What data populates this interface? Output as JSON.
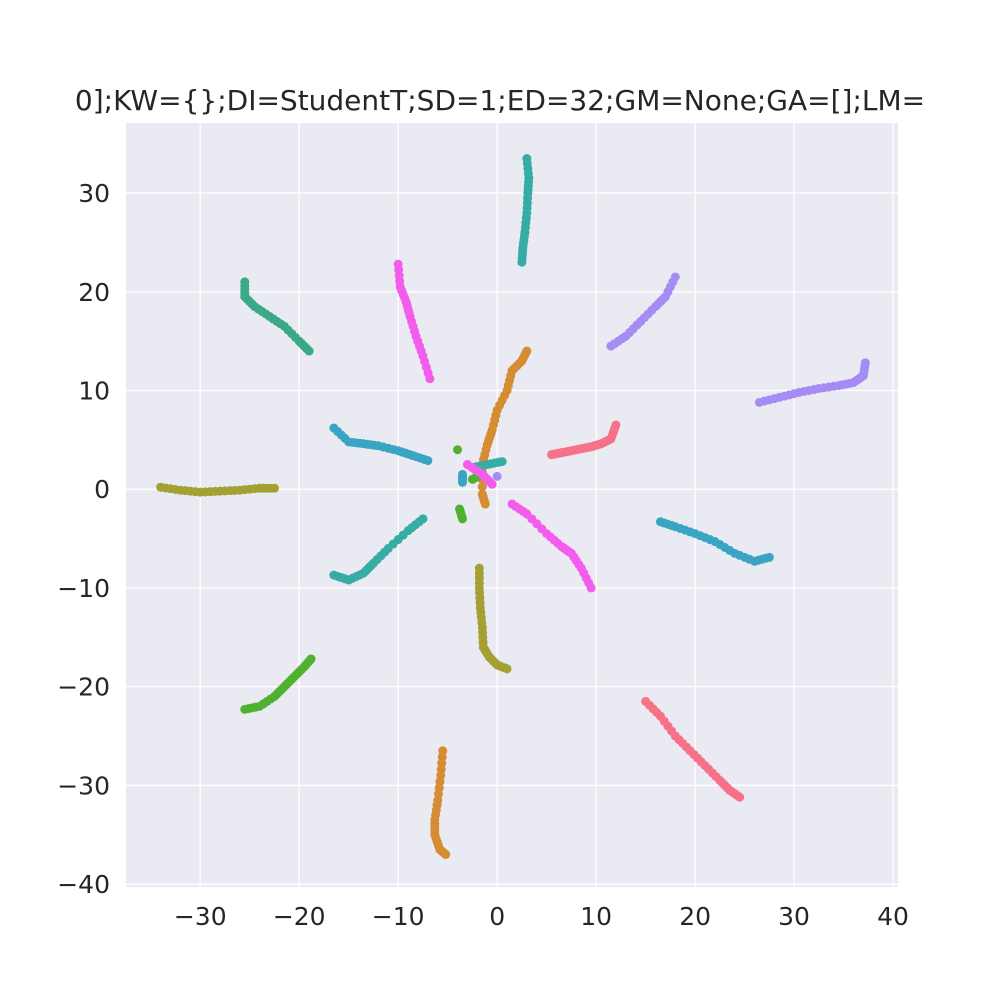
{
  "chart_data": {
    "type": "scatter",
    "title": "0];KW={};DI=StudentT;SD=1;ED=32;GM=None;GA=[];LM=",
    "xlabel": "",
    "ylabel": "",
    "xlim": [
      -37.5,
      40.5
    ],
    "ylim": [
      -40.3,
      37.1
    ],
    "xticks": [
      -30,
      -20,
      -10,
      0,
      10,
      20,
      30,
      40
    ],
    "yticks": [
      -40,
      -30,
      -20,
      -10,
      0,
      10,
      20,
      30
    ],
    "xtick_labels": [
      "−30",
      "−20",
      "−10",
      "0",
      "10",
      "20",
      "30",
      "40"
    ],
    "ytick_labels": [
      "−40",
      "−30",
      "−20",
      "−10",
      "0",
      "10",
      "20",
      "30"
    ],
    "grid": true,
    "background": "#eaeaf2",
    "grid_color": "#ffffff",
    "series": [
      {
        "color": "#f77189",
        "points": [
          [
            5.5,
            3.5
          ],
          [
            6.5,
            3.7
          ],
          [
            7.5,
            3.9
          ],
          [
            8.5,
            4.1
          ],
          [
            9.5,
            4.3
          ],
          [
            10.5,
            4.6
          ],
          [
            11.5,
            5.1
          ],
          [
            12,
            6.5
          ],
          [
            15,
            -21.5
          ],
          [
            16.5,
            -23
          ],
          [
            18,
            -25
          ],
          [
            19.5,
            -26.5
          ],
          [
            21,
            -28
          ],
          [
            22.5,
            -29.5
          ],
          [
            23.5,
            -30.5
          ],
          [
            24.5,
            -31.2
          ]
        ]
      },
      {
        "color": "#d58c32",
        "points": [
          [
            -5.5,
            -26.5
          ],
          [
            -5.7,
            -29
          ],
          [
            -6,
            -31.5
          ],
          [
            -6.3,
            -33.5
          ],
          [
            -6.3,
            -35
          ],
          [
            -5.8,
            -36.5
          ],
          [
            -5.2,
            -37
          ],
          [
            3,
            14
          ],
          [
            2.5,
            13
          ],
          [
            1.5,
            12
          ],
          [
            1,
            10
          ],
          [
            0,
            8
          ],
          [
            -0.5,
            6
          ],
          [
            -1,
            4.5
          ],
          [
            -1.5,
            2.5
          ],
          [
            -1.5,
            -0.5
          ],
          [
            -1.2,
            -1.5
          ]
        ]
      },
      {
        "color": "#a4a031",
        "points": [
          [
            -34,
            0.2
          ],
          [
            -32,
            -0.1
          ],
          [
            -30,
            -0.3
          ],
          [
            -28,
            -0.2
          ],
          [
            -26,
            -0.1
          ],
          [
            -24,
            0.1
          ],
          [
            -22.5,
            0.1
          ],
          [
            -1.8,
            -8
          ],
          [
            -1.8,
            -10
          ],
          [
            -1.7,
            -12
          ],
          [
            -1.5,
            -14
          ],
          [
            -1.4,
            -16
          ],
          [
            -0.8,
            -17
          ],
          [
            0,
            -17.8
          ],
          [
            1,
            -18.2
          ]
        ]
      },
      {
        "color": "#50b131",
        "points": [
          [
            -4,
            4
          ],
          [
            -3.8,
            -2
          ],
          [
            -3.5,
            -3
          ],
          [
            -25.5,
            -22.3
          ],
          [
            -24,
            -22
          ],
          [
            -22.5,
            -21
          ],
          [
            -21.5,
            -20
          ],
          [
            -20.5,
            -19
          ],
          [
            -19.5,
            -18
          ],
          [
            -18.8,
            -17.2
          ],
          [
            -1.5,
            1.5
          ],
          [
            -2.5,
            1
          ]
        ]
      },
      {
        "color": "#3ba986",
        "points": [
          [
            -25.5,
            21
          ],
          [
            -25.5,
            19.5
          ],
          [
            -24.5,
            18.5
          ],
          [
            -23,
            17.5
          ],
          [
            -21.5,
            16.5
          ],
          [
            -20,
            15
          ],
          [
            -19,
            14
          ]
        ]
      },
      {
        "color": "#36ada4",
        "points": [
          [
            3,
            33.5
          ],
          [
            3.2,
            31.5
          ],
          [
            3.1,
            30
          ],
          [
            3,
            28
          ],
          [
            2.8,
            26
          ],
          [
            2.6,
            24.5
          ],
          [
            2.5,
            23
          ],
          [
            -16.5,
            -8.7
          ],
          [
            -15,
            -9.2
          ],
          [
            -13.5,
            -8.5
          ],
          [
            -12.5,
            -7.5
          ],
          [
            -11,
            -6
          ],
          [
            -9,
            -4.2
          ],
          [
            -7.5,
            -3
          ],
          [
            -2.5,
            2.2
          ],
          [
            -1,
            2.5
          ],
          [
            0.5,
            2.8
          ]
        ]
      },
      {
        "color": "#3aa5c3",
        "points": [
          [
            -16.5,
            6.2
          ],
          [
            -15,
            4.8
          ],
          [
            -13.5,
            4.6
          ],
          [
            -12,
            4.4
          ],
          [
            -10,
            3.9
          ],
          [
            -8.5,
            3.4
          ],
          [
            -7,
            2.9
          ],
          [
            16.5,
            -3.3
          ],
          [
            18,
            -3.8
          ],
          [
            20,
            -4.5
          ],
          [
            22,
            -5.3
          ],
          [
            24,
            -6.5
          ],
          [
            26,
            -7.3
          ],
          [
            27.5,
            -6.9
          ],
          [
            -3.5,
            1.5
          ],
          [
            -3.5,
            0.7
          ]
        ]
      },
      {
        "color": "#a48cf4",
        "points": [
          [
            11.5,
            14.5
          ],
          [
            13,
            15.5
          ],
          [
            14.5,
            17
          ],
          [
            16,
            18.5
          ],
          [
            17,
            19.5
          ],
          [
            18,
            21.5
          ],
          [
            26.5,
            8.8
          ],
          [
            28.5,
            9.3
          ],
          [
            30.5,
            9.8
          ],
          [
            32.5,
            10.2
          ],
          [
            34.5,
            10.5
          ],
          [
            36,
            10.8
          ],
          [
            37,
            11.5
          ],
          [
            37.2,
            12.8
          ],
          [
            0,
            1.3
          ]
        ]
      },
      {
        "color": "#f45deb",
        "points": [
          [
            -10,
            22.8
          ],
          [
            -9.8,
            20.5
          ],
          [
            -9.2,
            19
          ],
          [
            -8.8,
            17.5
          ],
          [
            -8.2,
            15.5
          ],
          [
            -7.5,
            13.5
          ],
          [
            -6.8,
            11.2
          ],
          [
            1.5,
            -1.5
          ],
          [
            3,
            -2.5
          ],
          [
            5,
            -4.5
          ],
          [
            6.5,
            -5.8
          ],
          [
            7.5,
            -6.5
          ],
          [
            8.5,
            -8
          ],
          [
            9.5,
            -10
          ],
          [
            -3,
            2.5
          ],
          [
            -1.5,
            1.5
          ],
          [
            -0.5,
            0.5
          ]
        ]
      }
    ]
  }
}
